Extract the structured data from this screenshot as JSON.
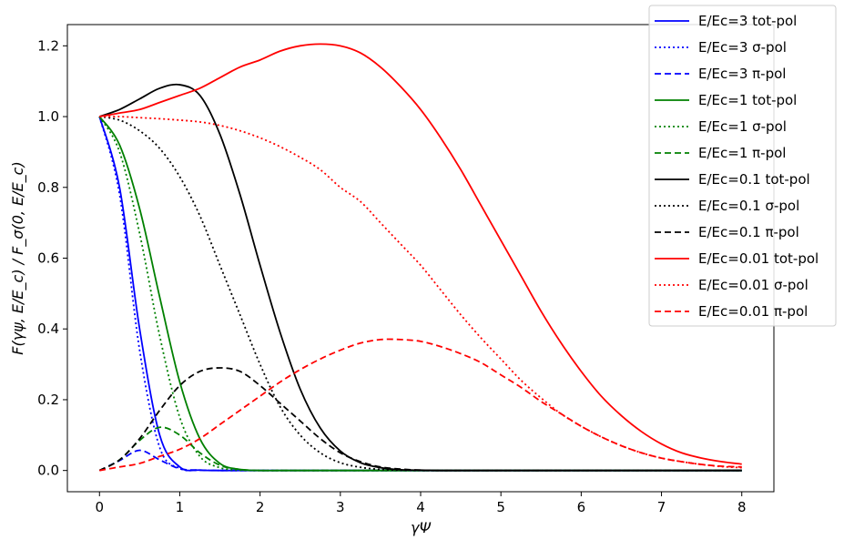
{
  "chart_data": {
    "type": "line",
    "xlabel": "γΨ",
    "ylabel": "F(γψ, E/E_c) / F_σ(0, E/E_c)",
    "xlim": [
      -0.4,
      8.4
    ],
    "ylim": [
      -0.06,
      1.26
    ],
    "x_ticks": [
      0,
      1,
      2,
      3,
      4,
      5,
      6,
      7,
      8
    ],
    "x_tick_labels": [
      "0",
      "1",
      "2",
      "3",
      "4",
      "5",
      "6",
      "7",
      "8"
    ],
    "y_ticks": [
      0.0,
      0.2,
      0.4,
      0.6,
      0.8,
      1.0,
      1.2
    ],
    "y_tick_labels": [
      "0.0",
      "0.2",
      "0.4",
      "0.6",
      "0.8",
      "1.0",
      "1.2"
    ],
    "grid": false,
    "legend_position": "top-right",
    "x": [
      0,
      0.25,
      0.5,
      0.75,
      1,
      1.25,
      1.5,
      1.75,
      2,
      2.25,
      2.5,
      2.75,
      3,
      3.25,
      3.5,
      3.75,
      4,
      4.25,
      4.5,
      4.75,
      5,
      5.25,
      5.5,
      5.75,
      6,
      6.25,
      6.5,
      6.75,
      7,
      7.25,
      7.5,
      7.75,
      8
    ],
    "series": [
      {
        "name": "E/Ec=3 tot-pol",
        "color": "#0000ff",
        "dash": "solid",
        "values": [
          1.0,
          0.8,
          0.4,
          0.1,
          0.01,
          0.001,
          0,
          0,
          0,
          0,
          0,
          0,
          0,
          0,
          0,
          0,
          0,
          0,
          0,
          0,
          0,
          0,
          0,
          0,
          0,
          0,
          0,
          0,
          0,
          0,
          0,
          0,
          0
        ]
      },
      {
        "name": "E/Ec=3 σ-pol",
        "color": "#0000ff",
        "dash": "dotted",
        "values": [
          1.0,
          0.78,
          0.34,
          0.065,
          0.006,
          0.001,
          0,
          0,
          0,
          0,
          0,
          0,
          0,
          0,
          0,
          0,
          0,
          0,
          0,
          0,
          0,
          0,
          0,
          0,
          0,
          0,
          0,
          0,
          0,
          0,
          0,
          0,
          0
        ]
      },
      {
        "name": "E/Ec=3 π-pol",
        "color": "#0000ff",
        "dash": "dashed",
        "values": [
          0,
          0.028,
          0.057,
          0.03,
          0.005,
          0.001,
          0,
          0,
          0,
          0,
          0,
          0,
          0,
          0,
          0,
          0,
          0,
          0,
          0,
          0,
          0,
          0,
          0,
          0,
          0,
          0,
          0,
          0,
          0,
          0,
          0,
          0,
          0
        ]
      },
      {
        "name": "E/Ec=1 tot-pol",
        "color": "#008000",
        "dash": "solid",
        "values": [
          1.0,
          0.92,
          0.74,
          0.49,
          0.25,
          0.09,
          0.02,
          0.003,
          0,
          0,
          0,
          0,
          0,
          0,
          0,
          0,
          0,
          0,
          0,
          0,
          0,
          0,
          0,
          0,
          0,
          0,
          0,
          0,
          0,
          0,
          0,
          0,
          0
        ]
      },
      {
        "name": "E/Ec=1 σ-pol",
        "color": "#008000",
        "dash": "dotted",
        "values": [
          1.0,
          0.9,
          0.67,
          0.38,
          0.15,
          0.04,
          0.008,
          0.001,
          0,
          0,
          0,
          0,
          0,
          0,
          0,
          0,
          0,
          0,
          0,
          0,
          0,
          0,
          0,
          0,
          0,
          0,
          0,
          0,
          0,
          0,
          0,
          0,
          0
        ]
      },
      {
        "name": "E/Ec=1 π-pol",
        "color": "#008000",
        "dash": "dashed",
        "values": [
          0,
          0.03,
          0.085,
          0.122,
          0.1,
          0.05,
          0.015,
          0.003,
          0,
          0,
          0,
          0,
          0,
          0,
          0,
          0,
          0,
          0,
          0,
          0,
          0,
          0,
          0,
          0,
          0,
          0,
          0,
          0,
          0,
          0,
          0,
          0,
          0
        ]
      },
      {
        "name": "E/Ec=0.1 tot-pol",
        "color": "#000000",
        "dash": "solid",
        "values": [
          1.0,
          1.02,
          1.05,
          1.08,
          1.09,
          1.06,
          0.95,
          0.78,
          0.58,
          0.39,
          0.23,
          0.12,
          0.055,
          0.022,
          0.008,
          0.002,
          0.001,
          0,
          0,
          0,
          0,
          0,
          0,
          0,
          0,
          0,
          0,
          0,
          0,
          0,
          0,
          0,
          0
        ]
      },
      {
        "name": "E/Ec=0.1 σ-pol",
        "color": "#000000",
        "dash": "dotted",
        "values": [
          1.0,
          0.99,
          0.96,
          0.91,
          0.83,
          0.72,
          0.58,
          0.44,
          0.3,
          0.18,
          0.1,
          0.05,
          0.022,
          0.009,
          0.003,
          0.001,
          0,
          0,
          0,
          0,
          0,
          0,
          0,
          0,
          0,
          0,
          0,
          0,
          0,
          0,
          0,
          0,
          0
        ]
      },
      {
        "name": "E/Ec=0.1 π-pol",
        "color": "#000000",
        "dash": "dashed",
        "values": [
          0,
          0.03,
          0.09,
          0.17,
          0.24,
          0.28,
          0.29,
          0.28,
          0.24,
          0.19,
          0.14,
          0.09,
          0.05,
          0.025,
          0.01,
          0.004,
          0.001,
          0,
          0,
          0,
          0,
          0,
          0,
          0,
          0,
          0,
          0,
          0,
          0,
          0,
          0,
          0,
          0
        ]
      },
      {
        "name": "E/Ec=0.01 tot-pol",
        "color": "#ff0000",
        "dash": "solid",
        "values": [
          1.0,
          1.01,
          1.02,
          1.04,
          1.06,
          1.08,
          1.11,
          1.14,
          1.16,
          1.185,
          1.2,
          1.205,
          1.2,
          1.18,
          1.14,
          1.085,
          1.02,
          0.94,
          0.85,
          0.75,
          0.65,
          0.55,
          0.45,
          0.36,
          0.28,
          0.21,
          0.155,
          0.11,
          0.075,
          0.05,
          0.035,
          0.025,
          0.018
        ]
      },
      {
        "name": "E/Ec=0.01 σ-pol",
        "color": "#ff0000",
        "dash": "dotted",
        "values": [
          1.0,
          1.0,
          0.997,
          0.994,
          0.99,
          0.985,
          0.975,
          0.96,
          0.94,
          0.915,
          0.885,
          0.85,
          0.8,
          0.76,
          0.7,
          0.64,
          0.58,
          0.51,
          0.44,
          0.375,
          0.315,
          0.255,
          0.205,
          0.16,
          0.125,
          0.095,
          0.07,
          0.05,
          0.035,
          0.025,
          0.017,
          0.011,
          0.008
        ]
      },
      {
        "name": "E/Ec=0.01 π-pol",
        "color": "#ff0000",
        "dash": "dashed",
        "values": [
          0,
          0.01,
          0.02,
          0.04,
          0.06,
          0.09,
          0.13,
          0.17,
          0.21,
          0.25,
          0.285,
          0.315,
          0.34,
          0.36,
          0.37,
          0.37,
          0.365,
          0.35,
          0.33,
          0.305,
          0.27,
          0.235,
          0.195,
          0.16,
          0.125,
          0.095,
          0.07,
          0.05,
          0.035,
          0.025,
          0.017,
          0.012,
          0.01
        ]
      }
    ]
  }
}
